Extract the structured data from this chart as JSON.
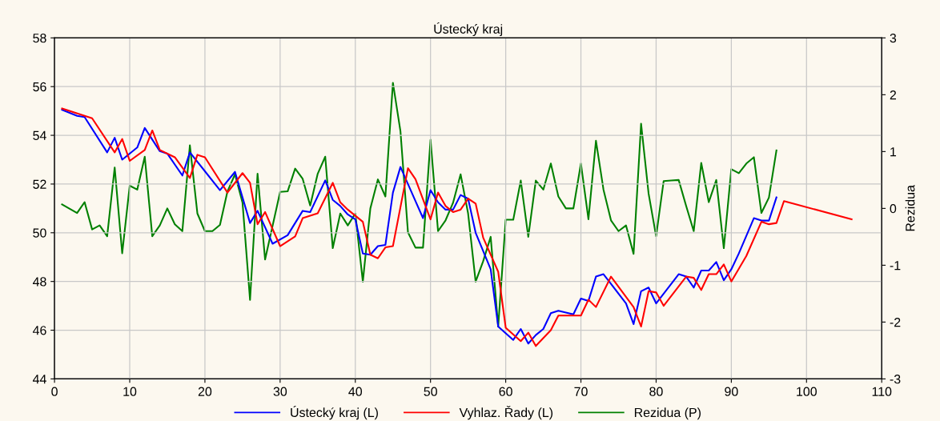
{
  "chart_data": {
    "type": "line",
    "title": "Ústecký kraj",
    "y2label": "Rezidua",
    "xlim": [
      0,
      110
    ],
    "xticks": [
      0,
      10,
      20,
      30,
      40,
      50,
      60,
      70,
      80,
      90,
      100,
      110
    ],
    "ylim": [
      44,
      58
    ],
    "yticks": [
      44,
      46,
      48,
      50,
      52,
      54,
      56,
      58
    ],
    "y2lim": [
      -3,
      3
    ],
    "y2ticks": [
      -3,
      -2,
      -1,
      0,
      1,
      2,
      3
    ],
    "grid": true,
    "legend": "bottom",
    "marker": "none",
    "line_style": "solid",
    "series": [
      {
        "name": "Ústecký kraj (L)",
        "color": "#0000ff",
        "x": [
          1,
          3,
          4,
          7,
          8,
          9,
          11,
          12,
          14,
          15,
          17,
          18,
          22,
          24,
          26,
          27,
          29,
          31,
          33,
          34,
          36,
          37,
          38,
          39,
          40,
          41,
          42,
          43,
          44,
          45,
          46,
          49,
          50,
          51,
          52,
          53,
          54,
          55,
          56,
          58,
          59,
          61,
          62,
          63,
          64,
          65,
          66,
          67,
          69,
          70,
          71,
          72,
          73,
          76,
          77,
          78,
          79,
          80,
          83,
          84,
          85,
          86,
          87,
          88,
          89,
          90,
          91,
          93,
          94,
          95,
          96
        ],
        "values": [
          55.05,
          54.8,
          54.75,
          53.3,
          53.9,
          53.0,
          53.5,
          54.3,
          53.35,
          53.25,
          52.35,
          53.3,
          51.75,
          52.5,
          50.4,
          50.9,
          49.55,
          49.9,
          50.9,
          50.85,
          52.15,
          51.35,
          51.1,
          50.75,
          50.55,
          49.15,
          49.1,
          49.45,
          49.5,
          51.65,
          52.7,
          50.6,
          51.75,
          51.25,
          50.95,
          50.95,
          51.55,
          51.4,
          50.0,
          48.5,
          46.15,
          45.6,
          46.05,
          45.45,
          45.8,
          46.05,
          46.7,
          46.8,
          46.65,
          47.3,
          47.2,
          48.2,
          48.3,
          47.1,
          46.25,
          47.6,
          47.75,
          47.1,
          48.3,
          48.2,
          47.75,
          48.45,
          48.45,
          48.8,
          48.05,
          48.5,
          49.15,
          50.6,
          50.5,
          50.5,
          51.45
        ]
      },
      {
        "name": "Vyhlaz. Řady (L)",
        "color": "#ff0000",
        "x": [
          1,
          5,
          8,
          9,
          10,
          12,
          13,
          14,
          16,
          18,
          19,
          20,
          23,
          25,
          26,
          27,
          28,
          30,
          32,
          33,
          35,
          37,
          38,
          39,
          41,
          42,
          43,
          44,
          45,
          47,
          48,
          50,
          51,
          52,
          53,
          54,
          55,
          56,
          57,
          59,
          60,
          62,
          63,
          64,
          66,
          67,
          70,
          71,
          72,
          74,
          77,
          78,
          79,
          80,
          81,
          84,
          85,
          86,
          87,
          88,
          89,
          90,
          92,
          94,
          95,
          96,
          97,
          106
        ],
        "values": [
          55.1,
          54.7,
          53.3,
          53.85,
          52.95,
          53.4,
          54.2,
          53.4,
          53.1,
          52.25,
          53.2,
          53.1,
          51.65,
          52.45,
          52.05,
          50.35,
          50.85,
          49.45,
          49.85,
          50.6,
          50.8,
          52.05,
          51.25,
          50.95,
          50.45,
          49.1,
          48.95,
          49.4,
          49.45,
          52.65,
          52.2,
          50.55,
          51.65,
          51.1,
          50.85,
          50.95,
          51.4,
          51.2,
          49.8,
          48.4,
          46.1,
          45.55,
          45.9,
          45.35,
          46.0,
          46.6,
          46.6,
          47.25,
          46.95,
          48.2,
          46.95,
          46.15,
          47.6,
          47.55,
          47.0,
          48.2,
          48.15,
          47.65,
          48.3,
          48.3,
          48.7,
          48.0,
          49.05,
          50.45,
          50.35,
          50.4,
          51.3,
          50.55
        ]
      },
      {
        "name": "Rezidua (P)",
        "color": "#008000",
        "axis": "y2",
        "x": [
          1,
          3,
          4,
          5,
          6,
          7,
          8,
          9,
          10,
          11,
          12,
          13,
          14,
          15,
          16,
          17,
          18,
          19,
          20,
          21,
          22,
          23,
          24,
          25,
          26,
          27,
          28,
          30,
          31,
          32,
          33,
          34,
          35,
          36,
          37,
          38,
          39,
          40,
          41,
          42,
          43,
          44,
          45,
          46,
          47,
          48,
          49,
          50,
          51,
          52,
          53,
          54,
          55,
          56,
          57,
          58,
          59,
          60,
          61,
          62,
          63,
          64,
          65,
          66,
          67,
          68,
          69,
          70,
          71,
          72,
          73,
          74,
          75,
          76,
          77,
          78,
          79,
          80,
          81,
          82,
          83,
          84,
          85,
          86,
          87,
          88,
          89,
          90,
          91,
          92,
          93,
          94,
          95,
          96
        ],
        "values": [
          0.07,
          -0.08,
          0.11,
          -0.37,
          -0.3,
          -0.49,
          0.72,
          -0.79,
          0.4,
          0.33,
          0.91,
          -0.49,
          -0.3,
          0.0,
          -0.28,
          -0.4,
          1.11,
          -0.09,
          -0.4,
          -0.4,
          -0.29,
          0.3,
          0.6,
          0.1,
          -1.61,
          0.61,
          -0.9,
          0.29,
          0.3,
          0.7,
          0.52,
          0.05,
          0.61,
          0.91,
          -0.7,
          -0.09,
          -0.3,
          -0.09,
          -1.29,
          0.0,
          0.51,
          0.21,
          2.21,
          1.36,
          -0.42,
          -0.69,
          -0.69,
          1.21,
          -0.4,
          -0.21,
          0.1,
          0.6,
          -0.09,
          -1.29,
          -0.93,
          -0.5,
          -2.08,
          -0.2,
          -0.2,
          0.49,
          -0.5,
          0.49,
          0.33,
          0.79,
          0.21,
          0.0,
          0.0,
          0.79,
          -0.19,
          1.19,
          0.33,
          -0.21,
          -0.4,
          -0.3,
          -0.8,
          1.49,
          0.26,
          -0.49,
          0.48,
          0.49,
          0.5,
          0.04,
          -0.4,
          0.8,
          0.11,
          0.5,
          -0.7,
          0.69,
          0.62,
          0.79,
          0.9,
          -0.08,
          0.19,
          1.02
        ]
      }
    ]
  }
}
